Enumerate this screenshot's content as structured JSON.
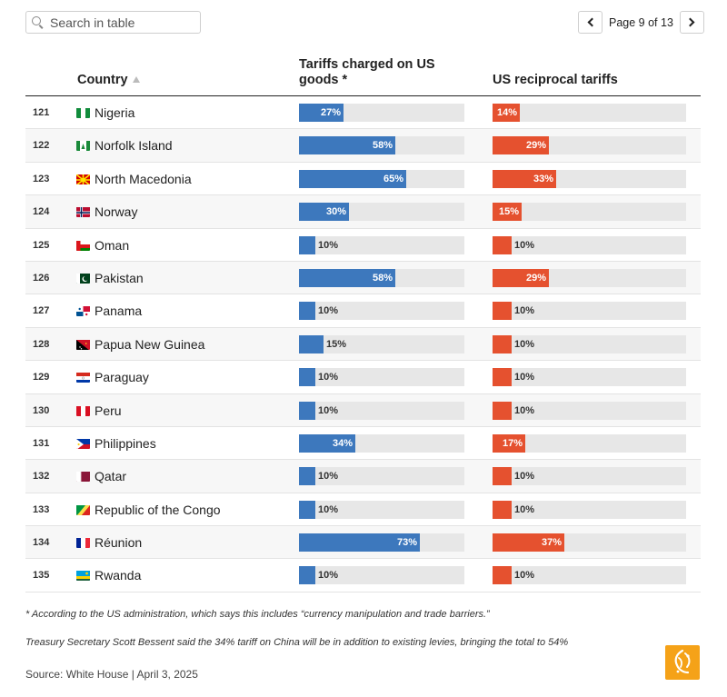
{
  "search": {
    "placeholder": "Search in table"
  },
  "pager": {
    "label": "Page 9 of 13"
  },
  "table": {
    "headers": {
      "country": "Country",
      "tariff": "Tariffs charged on US goods *",
      "reciprocal": "US reciprocal tariffs"
    },
    "rows": [
      {
        "rank": "121",
        "country": "Nigeria",
        "flag": "nigeria",
        "tariff": 27,
        "tariff_label": "27%",
        "recip": 14,
        "recip_label": "14%"
      },
      {
        "rank": "122",
        "country": "Norfolk Island",
        "flag": "norfolk",
        "tariff": 58,
        "tariff_label": "58%",
        "recip": 29,
        "recip_label": "29%"
      },
      {
        "rank": "123",
        "country": "North Macedonia",
        "flag": "macedonia",
        "tariff": 65,
        "tariff_label": "65%",
        "recip": 33,
        "recip_label": "33%"
      },
      {
        "rank": "124",
        "country": "Norway",
        "flag": "norway",
        "tariff": 30,
        "tariff_label": "30%",
        "recip": 15,
        "recip_label": "15%"
      },
      {
        "rank": "125",
        "country": "Oman",
        "flag": "oman",
        "tariff": 10,
        "tariff_label": "10%",
        "recip": 10,
        "recip_label": "10%"
      },
      {
        "rank": "126",
        "country": "Pakistan",
        "flag": "pakistan",
        "tariff": 58,
        "tariff_label": "58%",
        "recip": 29,
        "recip_label": "29%"
      },
      {
        "rank": "127",
        "country": "Panama",
        "flag": "panama",
        "tariff": 10,
        "tariff_label": "10%",
        "recip": 10,
        "recip_label": "10%"
      },
      {
        "rank": "128",
        "country": "Papua New Guinea",
        "flag": "png",
        "tariff": 15,
        "tariff_label": "15%",
        "recip": 10,
        "recip_label": "10%"
      },
      {
        "rank": "129",
        "country": "Paraguay",
        "flag": "paraguay",
        "tariff": 10,
        "tariff_label": "10%",
        "recip": 10,
        "recip_label": "10%"
      },
      {
        "rank": "130",
        "country": "Peru",
        "flag": "peru",
        "tariff": 10,
        "tariff_label": "10%",
        "recip": 10,
        "recip_label": "10%"
      },
      {
        "rank": "131",
        "country": "Philippines",
        "flag": "philippines",
        "tariff": 34,
        "tariff_label": "34%",
        "recip": 17,
        "recip_label": "17%"
      },
      {
        "rank": "132",
        "country": "Qatar",
        "flag": "qatar",
        "tariff": 10,
        "tariff_label": "10%",
        "recip": 10,
        "recip_label": "10%"
      },
      {
        "rank": "133",
        "country": "Republic of the Congo",
        "flag": "congo",
        "tariff": 10,
        "tariff_label": "10%",
        "recip": 10,
        "recip_label": "10%"
      },
      {
        "rank": "134",
        "country": "Réunion",
        "flag": "reunion",
        "tariff": 73,
        "tariff_label": "73%",
        "recip": 37,
        "recip_label": "37%"
      },
      {
        "rank": "135",
        "country": "Rwanda",
        "flag": "rwanda",
        "tariff": 10,
        "tariff_label": "10%",
        "recip": 10,
        "recip_label": "10%"
      }
    ]
  },
  "scale_max": 100,
  "colors": {
    "tariff_bar": "#3d78bd",
    "reciprocal_bar": "#e5512f",
    "track": "#e7e7e7"
  },
  "footnotes": {
    "note1": "* According to the US administration, which says this includes “currency manipulation and trade barriers.”",
    "note2": "Treasury Secretary Scott Bessent said the 34% tariff on China will be in addition to existing levies, bringing the total to 54%"
  },
  "source": "Source: White House | April 3, 2025",
  "logo": {
    "icon": "al-jazeera-logo-icon"
  }
}
